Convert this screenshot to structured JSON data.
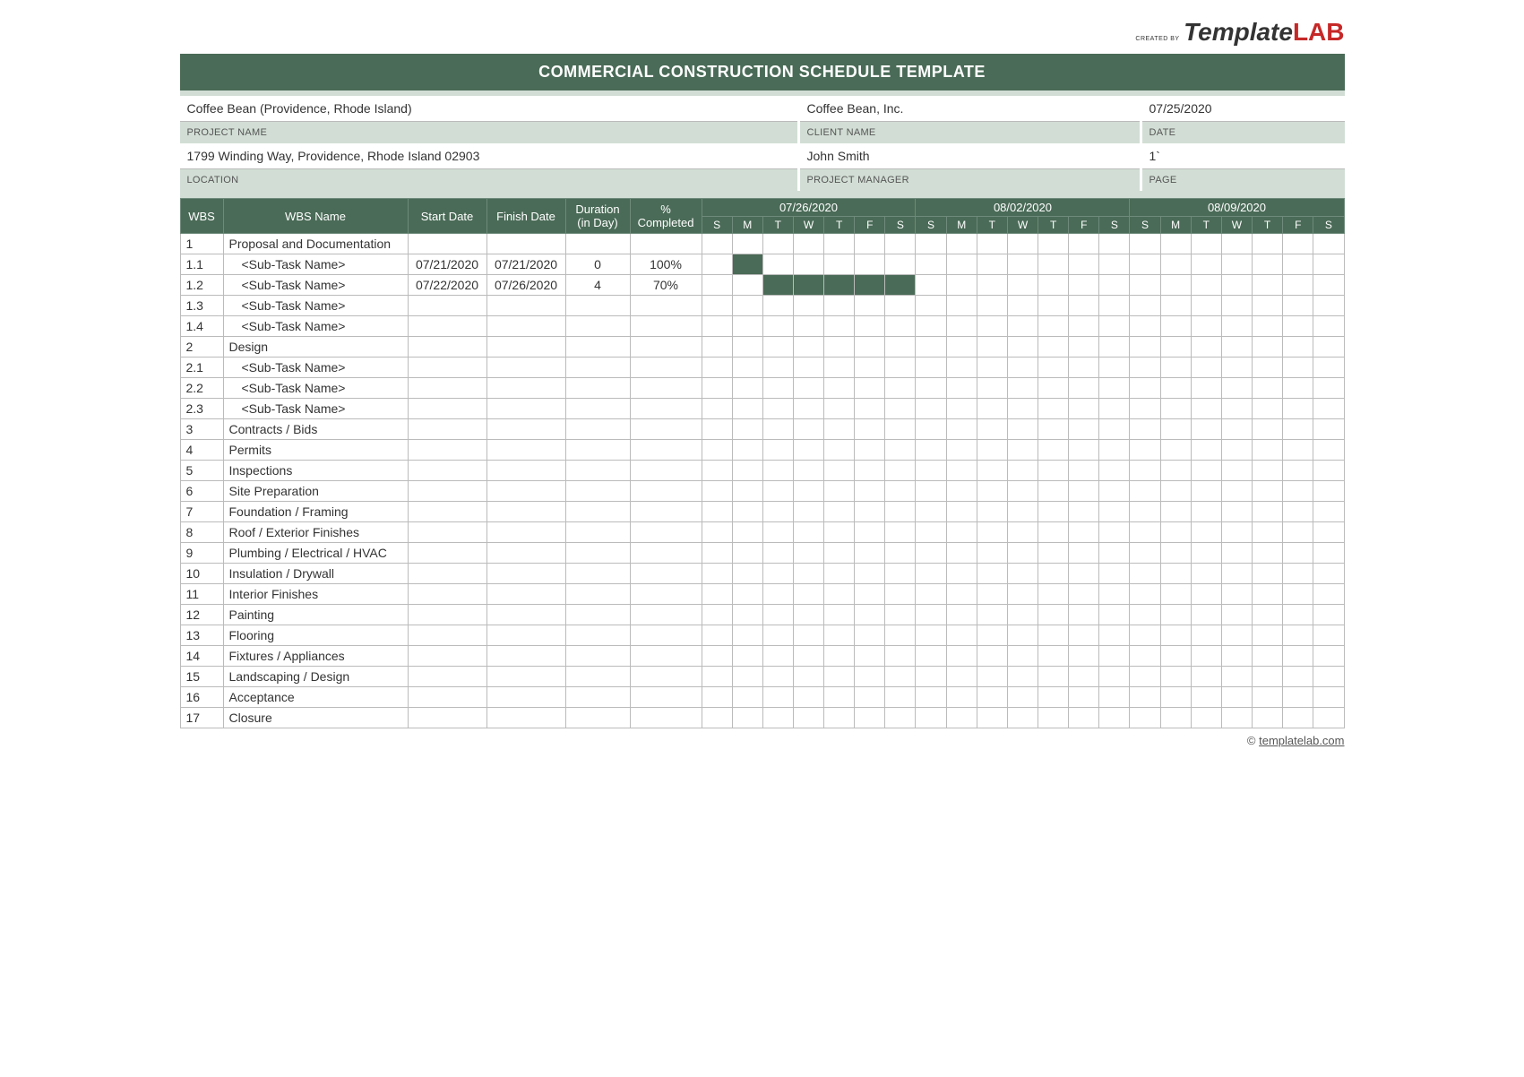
{
  "logo": {
    "created_by": "CREATED BY",
    "part1": "Template",
    "part2": "LAB"
  },
  "title": "COMMERCIAL CONSTRUCTION SCHEDULE TEMPLATE",
  "info": {
    "project_name": {
      "label": "PROJECT NAME",
      "value": "Coffee Bean (Providence, Rhode Island)"
    },
    "client_name": {
      "label": "CLIENT NAME",
      "value": "Coffee Bean, Inc."
    },
    "date": {
      "label": "DATE",
      "value": "07/25/2020"
    },
    "location": {
      "label": "LOCATION",
      "value": "1799  Winding Way, Providence, Rhode Island   02903"
    },
    "project_manager": {
      "label": "PROJECT MANAGER",
      "value": "John Smith"
    },
    "page": {
      "label": "PAGE",
      "value": "1`"
    }
  },
  "columns": {
    "wbs": "WBS",
    "wbs_name": "WBS Name",
    "start_date": "Start Date",
    "finish_date": "Finish Date",
    "duration": "Duration (in Day)",
    "completed": "% Completed"
  },
  "weeks": [
    {
      "label": "07/26/2020",
      "days": [
        "S",
        "M",
        "T",
        "W",
        "T",
        "F",
        "S"
      ]
    },
    {
      "label": "08/02/2020",
      "days": [
        "S",
        "M",
        "T",
        "W",
        "T",
        "F",
        "S"
      ]
    },
    {
      "label": "08/09/2020",
      "days": [
        "S",
        "M",
        "T",
        "W",
        "T",
        "F",
        "S"
      ]
    }
  ],
  "rows": [
    {
      "wbs": "1",
      "name": "Proposal and Documentation",
      "sub": false,
      "start": "",
      "finish": "",
      "dur": "",
      "pct": "",
      "fill": []
    },
    {
      "wbs": "1.1",
      "name": "<Sub-Task Name>",
      "sub": true,
      "start": "07/21/2020",
      "finish": "07/21/2020",
      "dur": "0",
      "pct": "100%",
      "fill": [
        1
      ]
    },
    {
      "wbs": "1.2",
      "name": "<Sub-Task Name>",
      "sub": true,
      "start": "07/22/2020",
      "finish": "07/26/2020",
      "dur": "4",
      "pct": "70%",
      "fill": [
        2,
        3,
        4,
        5,
        6
      ]
    },
    {
      "wbs": "1.3",
      "name": "<Sub-Task Name>",
      "sub": true,
      "start": "",
      "finish": "",
      "dur": "",
      "pct": "",
      "fill": []
    },
    {
      "wbs": "1.4",
      "name": "<Sub-Task Name>",
      "sub": true,
      "start": "",
      "finish": "",
      "dur": "",
      "pct": "",
      "fill": []
    },
    {
      "wbs": "2",
      "name": "Design",
      "sub": false,
      "start": "",
      "finish": "",
      "dur": "",
      "pct": "",
      "fill": []
    },
    {
      "wbs": "2.1",
      "name": "<Sub-Task Name>",
      "sub": true,
      "start": "",
      "finish": "",
      "dur": "",
      "pct": "",
      "fill": []
    },
    {
      "wbs": "2.2",
      "name": "<Sub-Task Name>",
      "sub": true,
      "start": "",
      "finish": "",
      "dur": "",
      "pct": "",
      "fill": []
    },
    {
      "wbs": "2.3",
      "name": "<Sub-Task Name>",
      "sub": true,
      "start": "",
      "finish": "",
      "dur": "",
      "pct": "",
      "fill": []
    },
    {
      "wbs": "3",
      "name": "Contracts / Bids",
      "sub": false,
      "start": "",
      "finish": "",
      "dur": "",
      "pct": "",
      "fill": []
    },
    {
      "wbs": "4",
      "name": "Permits",
      "sub": false,
      "start": "",
      "finish": "",
      "dur": "",
      "pct": "",
      "fill": []
    },
    {
      "wbs": "5",
      "name": "Inspections",
      "sub": false,
      "start": "",
      "finish": "",
      "dur": "",
      "pct": "",
      "fill": []
    },
    {
      "wbs": "6",
      "name": "Site Preparation",
      "sub": false,
      "start": "",
      "finish": "",
      "dur": "",
      "pct": "",
      "fill": []
    },
    {
      "wbs": "7",
      "name": "Foundation / Framing",
      "sub": false,
      "start": "",
      "finish": "",
      "dur": "",
      "pct": "",
      "fill": []
    },
    {
      "wbs": "8",
      "name": "Roof / Exterior Finishes",
      "sub": false,
      "start": "",
      "finish": "",
      "dur": "",
      "pct": "",
      "fill": []
    },
    {
      "wbs": "9",
      "name": "Plumbing / Electrical / HVAC",
      "sub": false,
      "start": "",
      "finish": "",
      "dur": "",
      "pct": "",
      "fill": []
    },
    {
      "wbs": "10",
      "name": "Insulation / Drywall",
      "sub": false,
      "start": "",
      "finish": "",
      "dur": "",
      "pct": "",
      "fill": []
    },
    {
      "wbs": "11",
      "name": "Interior Finishes",
      "sub": false,
      "start": "",
      "finish": "",
      "dur": "",
      "pct": "",
      "fill": []
    },
    {
      "wbs": "12",
      "name": "Painting",
      "sub": false,
      "start": "",
      "finish": "",
      "dur": "",
      "pct": "",
      "fill": []
    },
    {
      "wbs": "13",
      "name": "Flooring",
      "sub": false,
      "start": "",
      "finish": "",
      "dur": "",
      "pct": "",
      "fill": []
    },
    {
      "wbs": "14",
      "name": "Fixtures / Appliances",
      "sub": false,
      "start": "",
      "finish": "",
      "dur": "",
      "pct": "",
      "fill": []
    },
    {
      "wbs": "15",
      "name": "Landscaping / Design",
      "sub": false,
      "start": "",
      "finish": "",
      "dur": "",
      "pct": "",
      "fill": []
    },
    {
      "wbs": "16",
      "name": "Acceptance",
      "sub": false,
      "start": "",
      "finish": "",
      "dur": "",
      "pct": "",
      "fill": []
    },
    {
      "wbs": "17",
      "name": "Closure",
      "sub": false,
      "start": "",
      "finish": "",
      "dur": "",
      "pct": "",
      "fill": []
    }
  ],
  "footer": {
    "copyright": "©",
    "link": "templatelab.com"
  },
  "colors": {
    "header_bg": "#4a6b57",
    "label_bg": "#d2ded5",
    "border": "#bbbbbb",
    "fill": "#4a6b57"
  }
}
